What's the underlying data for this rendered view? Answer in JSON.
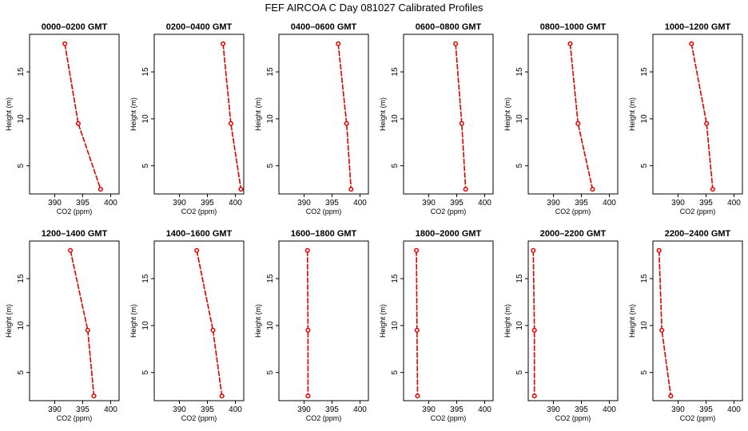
{
  "chart_data": {
    "type": "line",
    "title": "FEF AIRCOA C  Day 081027  Calibrated Profiles",
    "xlabel": "CO2 (ppm)",
    "ylabel": "Height (m)",
    "xlim": [
      385.5,
      401.5
    ],
    "ylim": [
      2,
      19
    ],
    "xticks": [
      390,
      395,
      400
    ],
    "yticks": [
      5,
      10,
      15
    ],
    "marker_color": "#e00000",
    "line_color": "#e00000",
    "heights": [
      18,
      9.5,
      2.5
    ],
    "panels": [
      {
        "title": "0000–0200 GMT",
        "co2": [
          391.8,
          394.2,
          398.2
        ]
      },
      {
        "title": "0200–0400 GMT",
        "co2": [
          397.8,
          399.2,
          401.0
        ]
      },
      {
        "title": "0400–0600 GMT",
        "co2": [
          396.1,
          397.6,
          398.4
        ]
      },
      {
        "title": "0600–0800 GMT",
        "co2": [
          394.8,
          395.9,
          396.6
        ]
      },
      {
        "title": "0800–1000 GMT",
        "co2": [
          393.0,
          394.4,
          397.0
        ]
      },
      {
        "title": "1000–1200 GMT",
        "co2": [
          392.4,
          395.1,
          396.2
        ]
      },
      {
        "title": "1200–1400 GMT",
        "co2": [
          392.8,
          395.9,
          397.0
        ]
      },
      {
        "title": "1400–1600 GMT",
        "co2": [
          393.1,
          396.0,
          397.6
        ]
      },
      {
        "title": "1600–1800 GMT",
        "co2": [
          390.6,
          390.7,
          390.7
        ]
      },
      {
        "title": "1800–2000 GMT",
        "co2": [
          387.8,
          387.9,
          388.0
        ]
      },
      {
        "title": "2000–2200 GMT",
        "co2": [
          386.4,
          386.6,
          386.6
        ]
      },
      {
        "title": "2200–2400 GMT",
        "co2": [
          386.6,
          387.1,
          388.7
        ]
      }
    ]
  }
}
